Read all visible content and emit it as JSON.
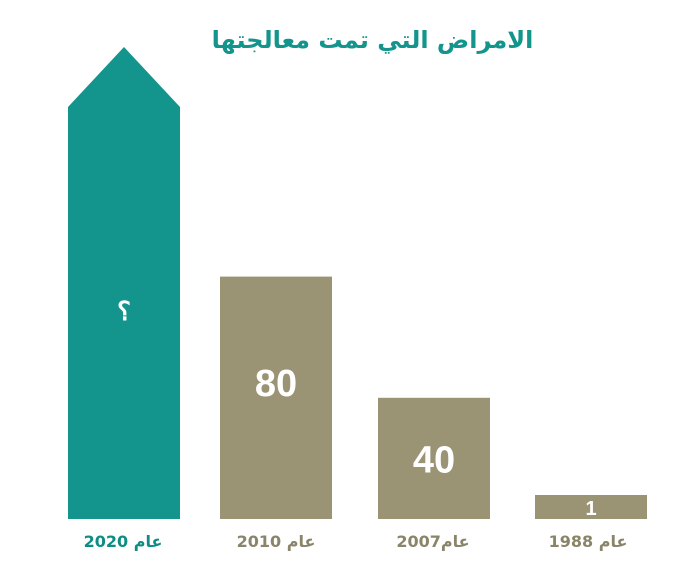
{
  "title": "الامراض التي تمت معالجتها",
  "colors": {
    "accent": "#13948c",
    "bar": "#9a9474",
    "highlight_label": "#0f8d85",
    "muted_label": "#8a8469"
  },
  "chart_data": {
    "type": "bar",
    "title": "الامراض التي تمت معالجتها",
    "categories": [
      "عام 2020",
      "عام 2010",
      "عام2007",
      "عام 1988"
    ],
    "values": [
      null,
      80,
      40,
      1
    ],
    "value_labels": [
      "؟",
      "80",
      "40",
      "1"
    ],
    "highlight_index": 0,
    "highlight_shape": "arrow-up",
    "ylim": [
      0,
      130
    ],
    "grid": false,
    "legend": "none"
  }
}
